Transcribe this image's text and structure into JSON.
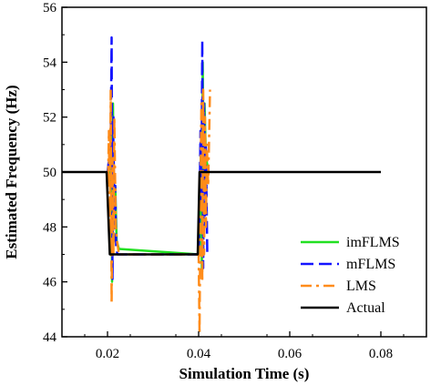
{
  "chart_data": {
    "type": "line",
    "title": "",
    "xlabel": "Simulation Time (s)",
    "ylabel": "Estimated Frequency (Hz)",
    "xlim": [
      0.01,
      0.09
    ],
    "ylim": [
      44,
      56
    ],
    "xticks": [
      0.02,
      0.04,
      0.06,
      0.08
    ],
    "xtick_labels": [
      "0.02",
      "0.04",
      "0.06",
      "0.08"
    ],
    "yticks": [
      44,
      46,
      48,
      50,
      52,
      54,
      56
    ],
    "ytick_labels": [
      "44",
      "46",
      "48",
      "50",
      "52",
      "54",
      "56"
    ],
    "grid": false,
    "legend_position": "bottom-right",
    "series": [
      {
        "name": "imFLMS",
        "color": "#22e022",
        "dash": "solid",
        "x": [
          0.02,
          0.0203,
          0.0206,
          0.0208,
          0.021,
          0.0212,
          0.0214,
          0.0217,
          0.022,
          0.0225,
          0.04,
          0.0403,
          0.0405,
          0.0407,
          0.0409,
          0.0411,
          0.0413,
          0.0416,
          0.042
        ],
        "y": [
          50.0,
          50.2,
          49.5,
          51.5,
          46.0,
          52.5,
          48.0,
          49.5,
          47.5,
          47.2,
          47.0,
          48.0,
          51.0,
          46.5,
          54.0,
          50.0,
          52.5,
          50.5,
          50.2
        ]
      },
      {
        "name": "mFLMS",
        "color": "#1414ff",
        "dash": "dashed",
        "x": [
          0.02,
          0.0202,
          0.0205,
          0.0207,
          0.0209,
          0.0211,
          0.0213,
          0.0215,
          0.0217,
          0.0219,
          0.0222,
          0.04,
          0.0402,
          0.0404,
          0.0406,
          0.0408,
          0.041,
          0.0412,
          0.0414,
          0.0416,
          0.0419
        ],
        "y": [
          50.0,
          50.3,
          50.5,
          51.0,
          54.9,
          46.1,
          52.0,
          47.5,
          49.5,
          47.2,
          47.0,
          47.0,
          48.5,
          51.5,
          49.0,
          54.8,
          46.5,
          52.5,
          48.0,
          51.0,
          47.0
        ]
      },
      {
        "name": "LMS",
        "color": "#ff8c1a",
        "dash": "dashdot",
        "x": [
          0.0198,
          0.0201,
          0.0203,
          0.0205,
          0.0207,
          0.0209,
          0.0211,
          0.0213,
          0.0215,
          0.0218,
          0.0221,
          0.0225,
          0.04,
          0.0402,
          0.0404,
          0.0406,
          0.0408,
          0.041,
          0.0412,
          0.0414,
          0.0416,
          0.0418,
          0.0421,
          0.0425
        ],
        "y": [
          50.0,
          49.5,
          51.5,
          47.5,
          53.0,
          45.2,
          50.5,
          47.0,
          52.0,
          48.0,
          47.5,
          47.0,
          47.0,
          44.1,
          49.0,
          52.5,
          46.0,
          53.0,
          47.0,
          52.0,
          48.0,
          51.0,
          49.5,
          53.0
        ]
      },
      {
        "name": "Actual",
        "color": "#000000",
        "dash": "solid",
        "x": [
          0.01,
          0.0198,
          0.0205,
          0.0398,
          0.0402,
          0.08
        ],
        "y": [
          50,
          50,
          47,
          47,
          50,
          50
        ]
      }
    ]
  }
}
